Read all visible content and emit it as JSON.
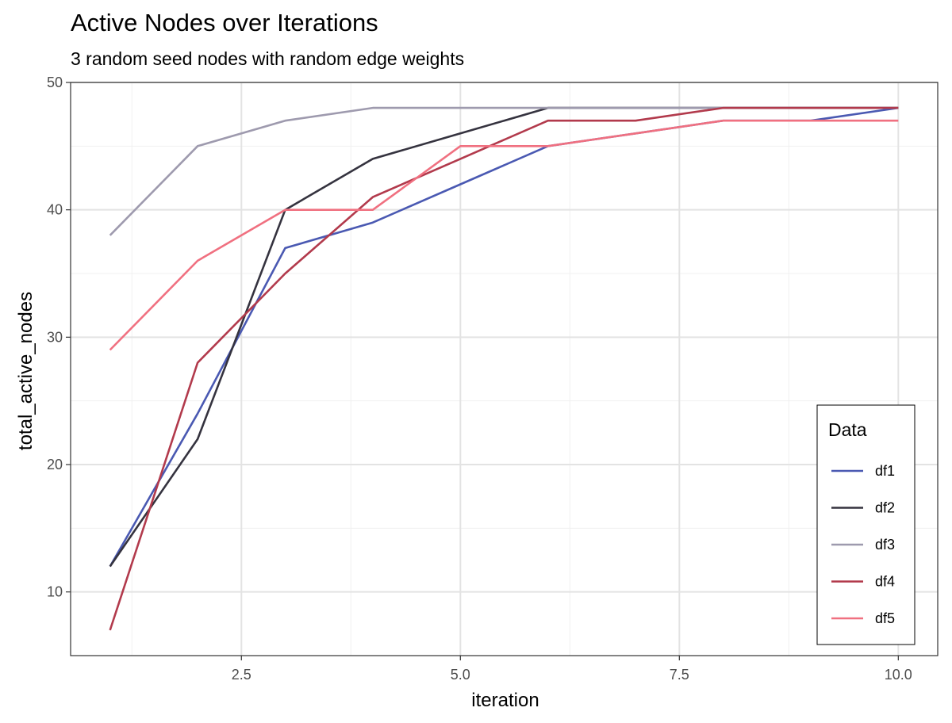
{
  "chart_data": {
    "type": "line",
    "title": "Active Nodes over Iterations",
    "subtitle": "3 random seed nodes with random edge weights",
    "xlabel": "iteration",
    "ylabel": "total_active_nodes",
    "xlim": [
      0.55,
      10.45
    ],
    "ylim": [
      5,
      50
    ],
    "x_ticks": [
      2.5,
      5.0,
      7.5,
      10.0
    ],
    "x_tick_labels": [
      "2.5",
      "5.0",
      "7.5",
      "10.0"
    ],
    "x_minor": [
      1.25,
      3.75,
      6.25,
      8.75
    ],
    "y_ticks": [
      10,
      20,
      30,
      40,
      50
    ],
    "y_tick_labels": [
      "10",
      "20",
      "30",
      "40",
      "50"
    ],
    "y_minor": [
      15,
      25,
      35,
      45
    ],
    "grid": true,
    "legend": {
      "title": "Data",
      "position": "bottom-right"
    },
    "x": [
      1,
      2,
      3,
      4,
      5,
      6,
      7,
      8,
      9,
      10
    ],
    "series": [
      {
        "name": "df1",
        "color": "#4a59b2",
        "values": [
          12,
          24,
          37,
          39,
          42,
          45,
          46,
          47,
          47,
          48
        ]
      },
      {
        "name": "df2",
        "color": "#35333f",
        "values": [
          12,
          22,
          40,
          44,
          46,
          48,
          48,
          48,
          48,
          48
        ]
      },
      {
        "name": "df3",
        "color": "#9e9aae",
        "values": [
          38,
          45,
          47,
          48,
          48,
          48,
          48,
          48,
          48,
          48
        ]
      },
      {
        "name": "df4",
        "color": "#b23a4c",
        "values": [
          7,
          28,
          35,
          41,
          44,
          47,
          47,
          48,
          48,
          48
        ]
      },
      {
        "name": "df5",
        "color": "#f07080",
        "values": [
          29,
          36,
          40,
          40,
          45,
          45,
          46,
          47,
          47,
          47
        ]
      }
    ]
  }
}
